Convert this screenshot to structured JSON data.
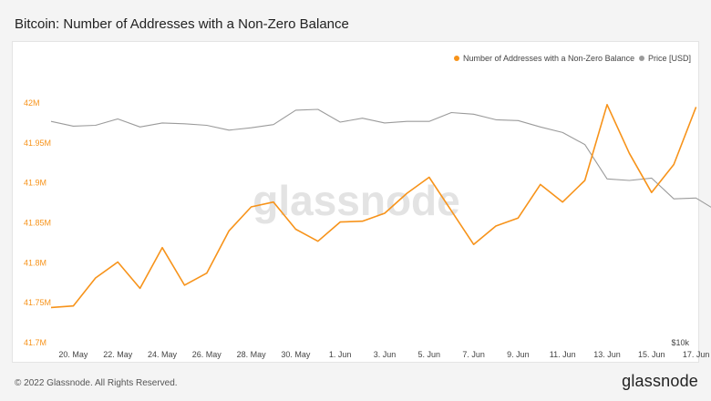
{
  "page": {
    "title": "Bitcoin: Number of Addresses with a Non-Zero Balance",
    "copyright": "© 2022 Glassnode. All Rights Reserved.",
    "brand": "glassnode",
    "watermark": "glassnode"
  },
  "colors": {
    "addresses": "#f7931a",
    "price": "#9b9b9b"
  },
  "chart_data": {
    "type": "line",
    "title": "Bitcoin: Number of Addresses with a Non-Zero Balance",
    "x_tick_labels": [
      "20. May",
      "22. May",
      "24. May",
      "26. May",
      "28. May",
      "30. May",
      "1. Jun",
      "3. Jun",
      "5. Jun",
      "7. Jun",
      "9. Jun",
      "11. Jun",
      "13. Jun",
      "15. Jun",
      "17. Jun"
    ],
    "y_left": {
      "tick_labels": [
        "41.7M",
        "41.75M",
        "41.8M",
        "41.85M",
        "41.9M",
        "41.95M",
        "42M"
      ],
      "range": [
        41.7,
        42.0
      ]
    },
    "y_right": {
      "tick_labels": [
        "$10k"
      ]
    },
    "legend_position": "top-right",
    "grid": false,
    "series": [
      {
        "name": "Number of Addresses with a Non-Zero Balance",
        "axis": "left",
        "x_start": "2022-05-19",
        "values": [
          41.744,
          41.746,
          41.781,
          41.801,
          41.768,
          41.819,
          41.772,
          41.787,
          41.84,
          41.87,
          41.876,
          41.842,
          41.827,
          41.851,
          41.852,
          41.862,
          41.887,
          41.907,
          41.865,
          41.823,
          41.846,
          41.856,
          41.898,
          41.876,
          41.903,
          41.998,
          41.937,
          41.888,
          41.923,
          41.995
        ]
      },
      {
        "name": "Price [USD]",
        "axis": "right",
        "x_start": "2022-05-19",
        "values": [
          41.977,
          41.971,
          41.972,
          41.98,
          41.97,
          41.975,
          41.974,
          41.972,
          41.966,
          41.969,
          41.973,
          41.991,
          41.992,
          41.976,
          41.981,
          41.975,
          41.977,
          41.977,
          41.988,
          41.986,
          41.979,
          41.978,
          41.97,
          41.963,
          41.948,
          41.905,
          41.903,
          41.906,
          41.88,
          41.881,
          41.864
        ]
      }
    ]
  }
}
